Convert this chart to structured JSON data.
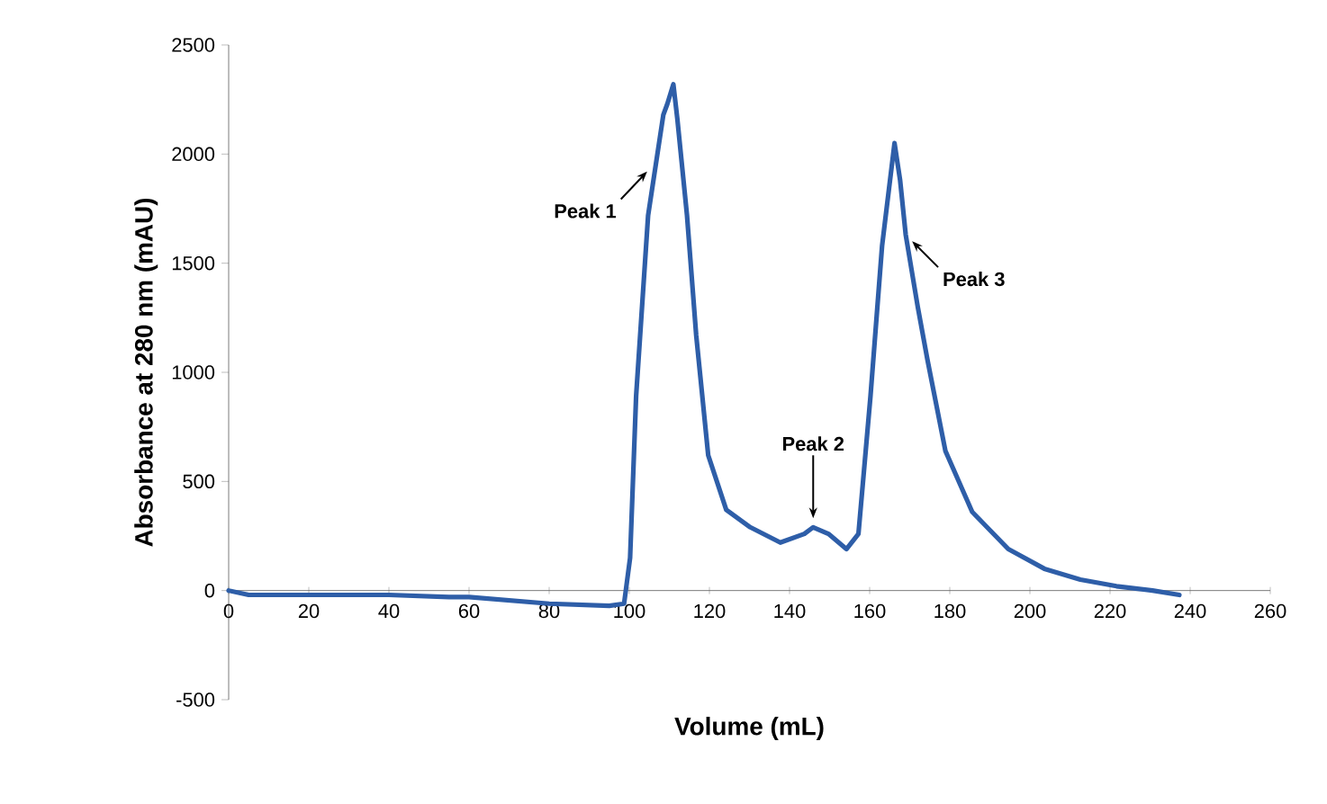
{
  "chart_data": {
    "type": "line",
    "xlabel": "Volume (mL)",
    "ylabel": "Absorbance at 280 nm (mAU)",
    "xlim": [
      0,
      260
    ],
    "ylim": [
      -500,
      2500
    ],
    "xticks": [
      0,
      20,
      40,
      60,
      80,
      100,
      120,
      140,
      160,
      180,
      200,
      220,
      240,
      260
    ],
    "yticks": [
      -500,
      0,
      500,
      1000,
      1500,
      2000,
      2500
    ],
    "grid": false,
    "marker": "none",
    "line_style": "solid",
    "series": [
      {
        "color": "#2e5ea8",
        "x": [
          0,
          5,
          20,
          40,
          55,
          60,
          80,
          95,
          98.7,
          100.2,
          101.7,
          104.7,
          108.5,
          109.5,
          111,
          112,
          114.4,
          116.7,
          119.7,
          124.2,
          130.2,
          137.7,
          143.7,
          145.9,
          149.7,
          154.2,
          157.2,
          160.2,
          163.1,
          166.2,
          167.6,
          169,
          172,
          174.4,
          178.9,
          185.6,
          194.6,
          203.6,
          212.6,
          221.6,
          230.6,
          237.3
        ],
        "values": [
          0,
          -20,
          -20,
          -20,
          -30,
          -30,
          -60,
          -70,
          -60,
          150,
          890,
          1720,
          2180,
          2230,
          2320,
          2160,
          1720,
          1170,
          620,
          370,
          290,
          220,
          260,
          290,
          260,
          190,
          260,
          890,
          1580,
          2050,
          1880,
          1630,
          1300,
          1060,
          640,
          360,
          190,
          100,
          50,
          20,
          0,
          -20
        ]
      }
    ],
    "annotations": [
      {
        "text": "Peak 1",
        "x": 106,
        "y": 1950
      },
      {
        "text": "Peak 2",
        "x": 145.9,
        "y": 290
      },
      {
        "text": "Peak 3",
        "x": 169,
        "y": 1630
      }
    ]
  }
}
